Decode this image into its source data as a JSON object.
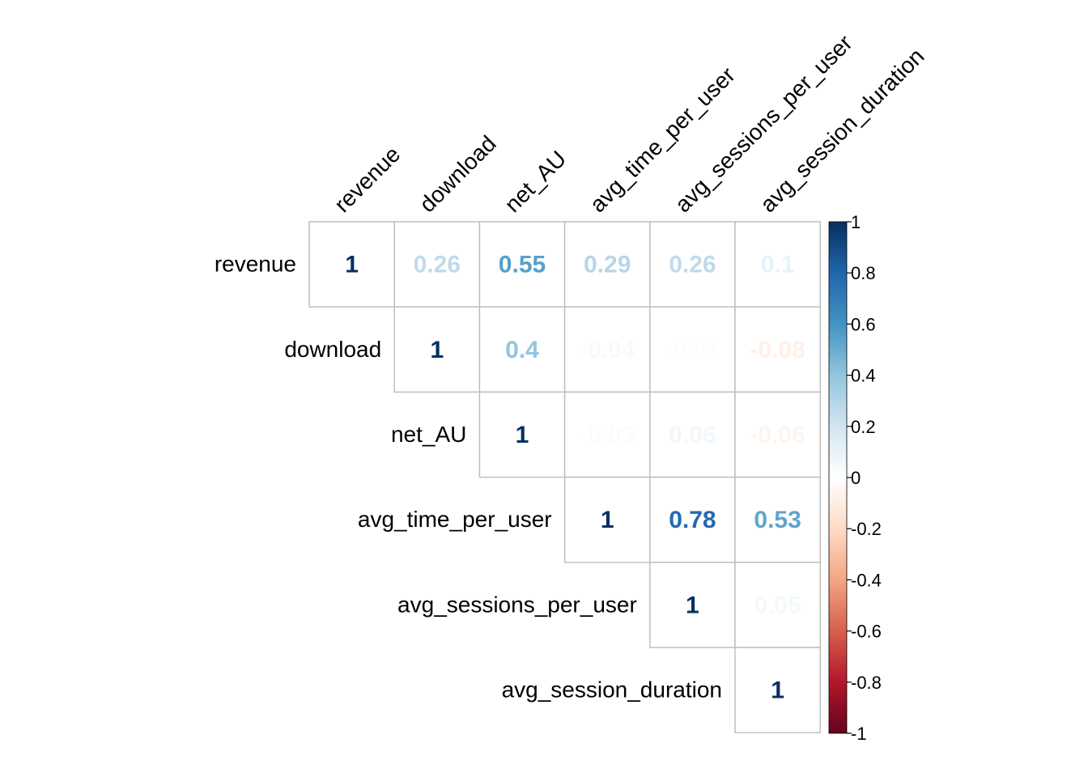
{
  "chart_data": {
    "type": "heatmap",
    "variables": [
      "revenue",
      "download",
      "net_AU",
      "avg_time_per_user",
      "avg_sessions_per_user",
      "avg_session_duration"
    ],
    "matrix": [
      [
        1,
        0.26,
        0.55,
        0.29,
        0.26,
        0.1
      ],
      [
        null,
        1,
        0.4,
        -0.04,
        -0.01,
        -0.08
      ],
      [
        null,
        null,
        1,
        -0.03,
        0.06,
        -0.06
      ],
      [
        null,
        null,
        null,
        1,
        0.78,
        0.53
      ],
      [
        null,
        null,
        null,
        null,
        1,
        0.05
      ],
      [
        null,
        null,
        null,
        null,
        null,
        1
      ]
    ],
    "value_labels": [
      [
        "1",
        "0.26",
        "0.55",
        "0.29",
        "0.26",
        "0.1"
      ],
      [
        null,
        "1",
        "0.4",
        "-0.04",
        "-0.01",
        "-0.08"
      ],
      [
        null,
        null,
        "1",
        "-0.03",
        "0.06",
        "-0.06"
      ],
      [
        null,
        null,
        null,
        "1",
        "0.78",
        "0.53"
      ],
      [
        null,
        null,
        null,
        null,
        "1",
        "0.05"
      ],
      [
        null,
        null,
        null,
        null,
        null,
        "1"
      ]
    ],
    "triangle": "upper",
    "colorbar": {
      "range": [
        -1,
        1
      ],
      "ticks": [
        "1",
        "0.8",
        "0.6",
        "0.4",
        "0.2",
        "0",
        "-0.2",
        "-0.4",
        "-0.6",
        "-0.8",
        "-1"
      ],
      "tick_values": [
        1,
        0.8,
        0.6,
        0.4,
        0.2,
        0,
        -0.2,
        -0.4,
        -0.6,
        -0.8,
        -1
      ],
      "colors": [
        "#67001F",
        "#B2182B",
        "#D6604D",
        "#F4A582",
        "#FDDBC7",
        "#FFFFFF",
        "#D1E5F0",
        "#92C5DE",
        "#4393C3",
        "#2166AC",
        "#053061"
      ]
    }
  }
}
